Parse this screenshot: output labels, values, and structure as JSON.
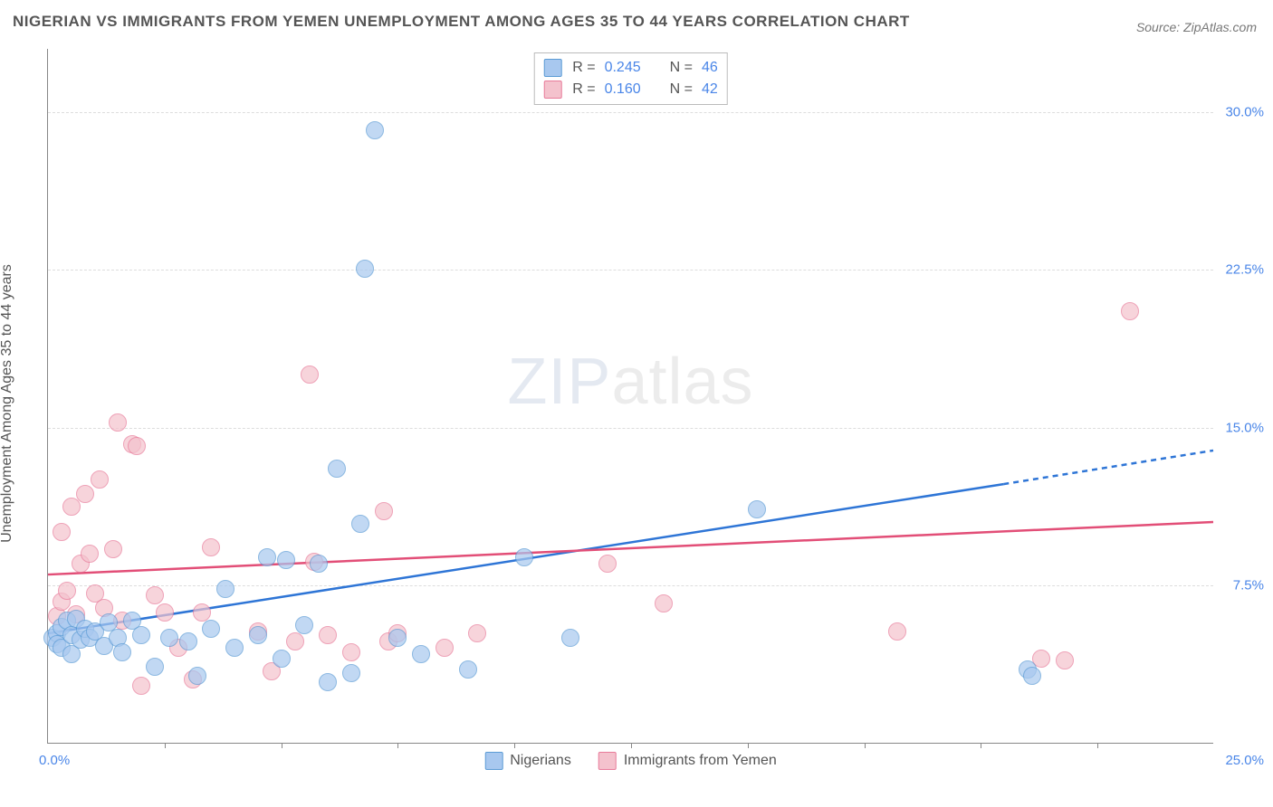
{
  "title": "NIGERIAN VS IMMIGRANTS FROM YEMEN UNEMPLOYMENT AMONG AGES 35 TO 44 YEARS CORRELATION CHART",
  "title_fontsize": 17,
  "source": "Source: ZipAtlas.com",
  "source_fontsize": 14,
  "ylabel": "Unemployment Among Ages 35 to 44 years",
  "watermark": "ZIPatlas",
  "chart": {
    "type": "scatter",
    "background_color": "#ffffff",
    "grid_color": "#dddddd",
    "axis_color": "#888888",
    "text_color": "#555555",
    "value_color": "#4a86e8",
    "xlim": [
      0,
      25
    ],
    "ylim": [
      0,
      33
    ],
    "yticks": [
      7.5,
      15.0,
      22.5,
      30.0
    ],
    "ytick_labels": [
      "7.5%",
      "15.0%",
      "22.5%",
      "30.0%"
    ],
    "xticks": [
      2.5,
      5,
      7.5,
      10,
      12.5,
      15,
      17.5,
      20,
      22.5
    ],
    "x_min_label": "0.0%",
    "x_max_label": "25.0%",
    "marker_radius": 10,
    "marker_opacity": 0.35,
    "line_width": 2.5
  },
  "series": {
    "a": {
      "name": "Nigerians",
      "color_fill": "#a8c8ef",
      "color_stroke": "#5b9bd5",
      "line_color": "#2e75d6",
      "R": "0.245",
      "N": "46",
      "trend": {
        "x1": 0,
        "y1": 5.2,
        "x2": 20.5,
        "y2": 12.3,
        "x2_dash": 25,
        "y2_dash": 13.9
      },
      "points": [
        [
          0.1,
          5.0
        ],
        [
          0.2,
          5.2
        ],
        [
          0.2,
          4.7
        ],
        [
          0.3,
          5.5
        ],
        [
          0.3,
          4.5
        ],
        [
          0.4,
          5.8
        ],
        [
          0.5,
          5.1
        ],
        [
          0.5,
          4.2
        ],
        [
          0.6,
          5.9
        ],
        [
          0.7,
          4.9
        ],
        [
          0.8,
          5.4
        ],
        [
          0.9,
          5.0
        ],
        [
          1.0,
          5.3
        ],
        [
          1.2,
          4.6
        ],
        [
          1.3,
          5.7
        ],
        [
          1.5,
          5.0
        ],
        [
          1.6,
          4.3
        ],
        [
          1.8,
          5.8
        ],
        [
          2.0,
          5.1
        ],
        [
          2.3,
          3.6
        ],
        [
          2.6,
          5.0
        ],
        [
          3.0,
          4.8
        ],
        [
          3.2,
          3.2
        ],
        [
          3.5,
          5.4
        ],
        [
          3.8,
          7.3
        ],
        [
          4.0,
          4.5
        ],
        [
          4.5,
          5.1
        ],
        [
          4.7,
          8.8
        ],
        [
          5.0,
          4.0
        ],
        [
          5.1,
          8.7
        ],
        [
          5.5,
          5.6
        ],
        [
          5.8,
          8.5
        ],
        [
          6.0,
          2.9
        ],
        [
          6.2,
          13.0
        ],
        [
          6.5,
          3.3
        ],
        [
          6.7,
          10.4
        ],
        [
          6.8,
          22.5
        ],
        [
          7.0,
          29.1
        ],
        [
          7.5,
          5.0
        ],
        [
          8.0,
          4.2
        ],
        [
          9.0,
          3.5
        ],
        [
          10.2,
          8.8
        ],
        [
          11.2,
          5.0
        ],
        [
          15.2,
          11.1
        ],
        [
          21.0,
          3.5
        ],
        [
          21.1,
          3.2
        ]
      ]
    },
    "b": {
      "name": "Immigrants from Yemen",
      "color_fill": "#f4c2cd",
      "color_stroke": "#e87b9a",
      "line_color": "#e24e77",
      "R": "0.160",
      "N": "42",
      "trend": {
        "x1": 0,
        "y1": 8.0,
        "x2": 25,
        "y2": 10.5
      },
      "points": [
        [
          0.2,
          6.0
        ],
        [
          0.3,
          6.7
        ],
        [
          0.3,
          10.0
        ],
        [
          0.4,
          7.2
        ],
        [
          0.5,
          11.2
        ],
        [
          0.6,
          6.1
        ],
        [
          0.7,
          8.5
        ],
        [
          0.8,
          11.8
        ],
        [
          0.9,
          9.0
        ],
        [
          1.0,
          7.1
        ],
        [
          1.1,
          12.5
        ],
        [
          1.2,
          6.4
        ],
        [
          1.4,
          9.2
        ],
        [
          1.5,
          15.2
        ],
        [
          1.6,
          5.8
        ],
        [
          1.8,
          14.2
        ],
        [
          1.9,
          14.1
        ],
        [
          2.0,
          2.7
        ],
        [
          2.3,
          7.0
        ],
        [
          2.5,
          6.2
        ],
        [
          2.8,
          4.5
        ],
        [
          3.1,
          3.0
        ],
        [
          3.3,
          6.2
        ],
        [
          3.5,
          9.3
        ],
        [
          4.5,
          5.3
        ],
        [
          4.8,
          3.4
        ],
        [
          5.3,
          4.8
        ],
        [
          5.6,
          17.5
        ],
        [
          5.7,
          8.6
        ],
        [
          6.0,
          5.1
        ],
        [
          6.5,
          4.3
        ],
        [
          7.2,
          11.0
        ],
        [
          7.3,
          4.8
        ],
        [
          7.5,
          5.2
        ],
        [
          8.5,
          4.5
        ],
        [
          9.2,
          5.2
        ],
        [
          12.0,
          8.5
        ],
        [
          13.2,
          6.6
        ],
        [
          18.2,
          5.3
        ],
        [
          21.3,
          4.0
        ],
        [
          21.8,
          3.9
        ],
        [
          23.2,
          20.5
        ]
      ]
    }
  },
  "legend_top": {
    "r_label": "R =",
    "n_label": "N ="
  }
}
